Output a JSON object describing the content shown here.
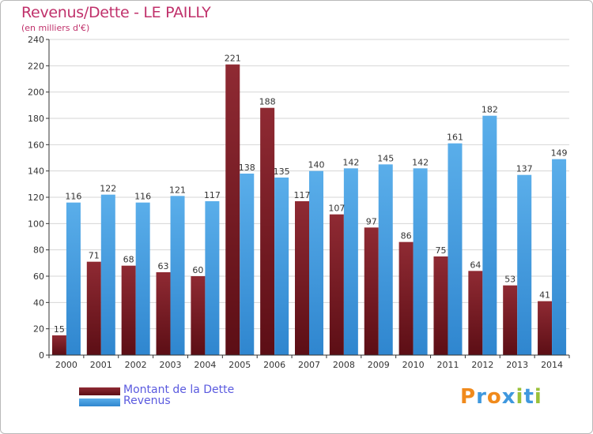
{
  "header": {
    "title": "Revenus/Dette - LE PAILLY",
    "subtitle": "(en milliers d'€)"
  },
  "chart_data": {
    "type": "bar",
    "title": "Revenus/Dette - LE PAILLY",
    "subtitle": "(en milliers d'€)",
    "categories": [
      "2000",
      "2001",
      "2002",
      "2003",
      "2004",
      "2005",
      "2006",
      "2007",
      "2008",
      "2009",
      "2010",
      "2011",
      "2012",
      "2013",
      "2014"
    ],
    "series": [
      {
        "name": "Montant de la Dette",
        "color": "#7a1a22",
        "values": [
          15,
          71,
          68,
          63,
          60,
          221,
          188,
          117,
          107,
          97,
          86,
          75,
          64,
          53,
          41
        ]
      },
      {
        "name": "Revenus",
        "color": "#3f98de",
        "values": [
          116,
          122,
          116,
          121,
          117,
          138,
          135,
          140,
          142,
          145,
          142,
          161,
          182,
          137,
          149
        ]
      }
    ],
    "ylim": [
      0,
      240
    ],
    "yticks": [
      "0",
      "20",
      "40",
      "60",
      "80",
      "100",
      "120",
      "140",
      "160",
      "180",
      "200",
      "220",
      "240"
    ],
    "grid": true,
    "legend_position": "bottom-left"
  },
  "legend": {
    "items": [
      {
        "label": "Montant de la Dette",
        "color": "#7a1a22"
      },
      {
        "label": "Revenus",
        "color": "#3f98de"
      }
    ]
  },
  "logo": {
    "text": "Proxiti",
    "letters": [
      {
        "ch": "P",
        "color": "#f08a1c"
      },
      {
        "ch": "r",
        "color": "#3f98de"
      },
      {
        "ch": "o",
        "color": "#f08a1c"
      },
      {
        "ch": "x",
        "color": "#3f98de"
      },
      {
        "ch": "i",
        "color": "#9ac13a"
      },
      {
        "ch": "t",
        "color": "#3f98de"
      },
      {
        "ch": "i",
        "color": "#9ac13a"
      }
    ]
  }
}
